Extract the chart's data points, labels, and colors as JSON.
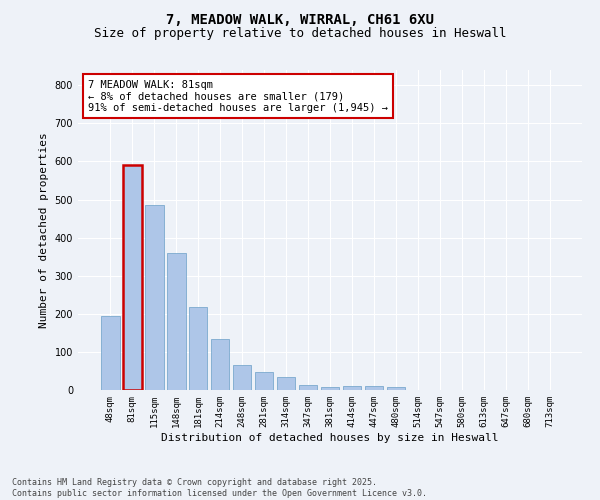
{
  "title": "7, MEADOW WALK, WIRRAL, CH61 6XU",
  "subtitle": "Size of property relative to detached houses in Heswall",
  "xlabel": "Distribution of detached houses by size in Heswall",
  "ylabel": "Number of detached properties",
  "categories": [
    "48sqm",
    "81sqm",
    "115sqm",
    "148sqm",
    "181sqm",
    "214sqm",
    "248sqm",
    "281sqm",
    "314sqm",
    "347sqm",
    "381sqm",
    "414sqm",
    "447sqm",
    "480sqm",
    "514sqm",
    "547sqm",
    "580sqm",
    "613sqm",
    "647sqm",
    "680sqm",
    "713sqm"
  ],
  "values": [
    195,
    590,
    485,
    360,
    218,
    133,
    65,
    48,
    35,
    14,
    8,
    10,
    10,
    7,
    0,
    0,
    0,
    0,
    0,
    0,
    0
  ],
  "bar_color": "#aec6e8",
  "bar_edge_color": "#6a9fc8",
  "highlight_bar_index": 1,
  "highlight_bar_edge_color": "#cc0000",
  "annotation_text": "7 MEADOW WALK: 81sqm\n← 8% of detached houses are smaller (179)\n91% of semi-detached houses are larger (1,945) →",
  "annotation_box_color": "#ffffff",
  "annotation_box_edge_color": "#cc0000",
  "ylim": [
    0,
    840
  ],
  "yticks": [
    0,
    100,
    200,
    300,
    400,
    500,
    600,
    700,
    800
  ],
  "background_color": "#eef2f8",
  "grid_color": "#ffffff",
  "footnote": "Contains HM Land Registry data © Crown copyright and database right 2025.\nContains public sector information licensed under the Open Government Licence v3.0.",
  "title_fontsize": 10,
  "subtitle_fontsize": 9,
  "axis_label_fontsize": 8,
  "tick_fontsize": 6.5,
  "annotation_fontsize": 7.5,
  "ylabel_fontsize": 8
}
